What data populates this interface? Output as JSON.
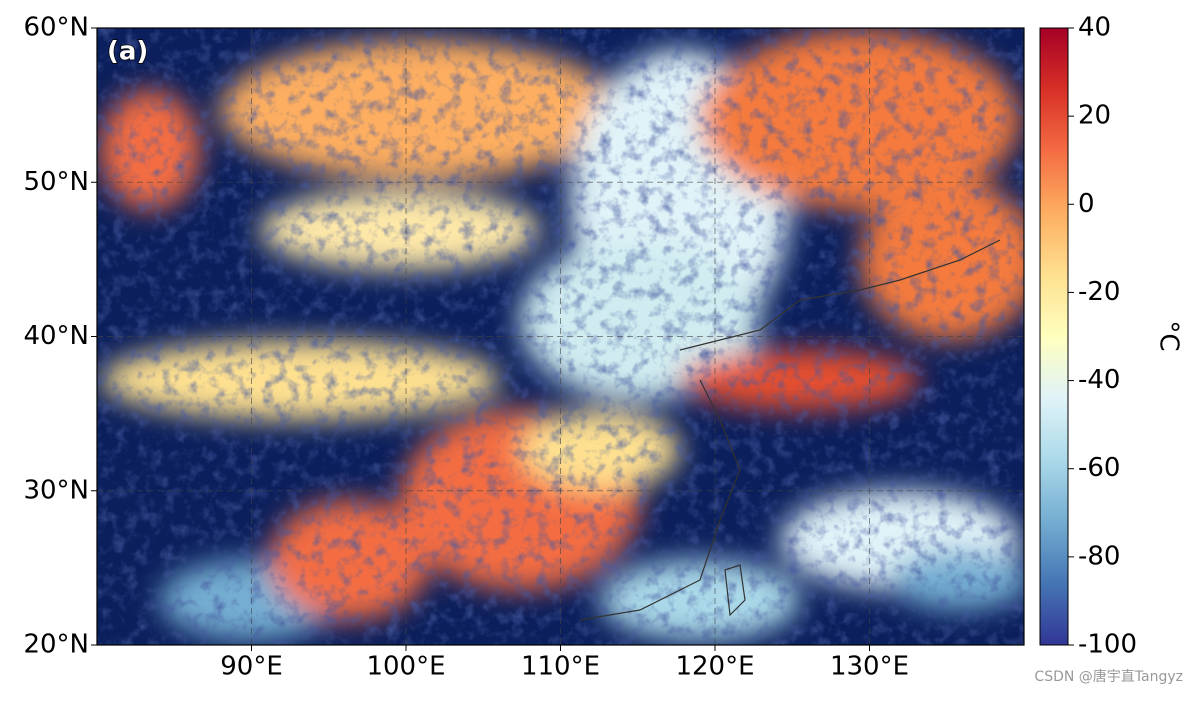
{
  "map": {
    "panel_label": "(a)",
    "xlim": [
      80,
      140
    ],
    "ylim": [
      20,
      60
    ],
    "xticks": [
      {
        "value": 90,
        "label": "90°E"
      },
      {
        "value": 100,
        "label": "100°E"
      },
      {
        "value": 110,
        "label": "110°E"
      },
      {
        "value": 120,
        "label": "120°E"
      },
      {
        "value": 130,
        "label": "130°E"
      }
    ],
    "yticks": [
      {
        "value": 20,
        "label": "20°N"
      },
      {
        "value": 30,
        "label": "30°N"
      },
      {
        "value": 40,
        "label": "40°N"
      },
      {
        "value": 50,
        "label": "50°N"
      },
      {
        "value": 60,
        "label": "60°N"
      }
    ],
    "grid": true,
    "colorbar": {
      "label": "°C",
      "lim": [
        -100,
        40
      ],
      "ticks": [
        40,
        20,
        0,
        -20,
        -40,
        -60,
        -80,
        -100
      ],
      "colormap": [
        "#313695",
        "#4575b4",
        "#74add1",
        "#abd9e9",
        "#e0f3f8",
        "#ffffbf",
        "#fee090",
        "#fdae61",
        "#f46d43",
        "#d73027",
        "#a50026"
      ]
    },
    "watermark": "CSDN @唐宇直Tangyz"
  }
}
